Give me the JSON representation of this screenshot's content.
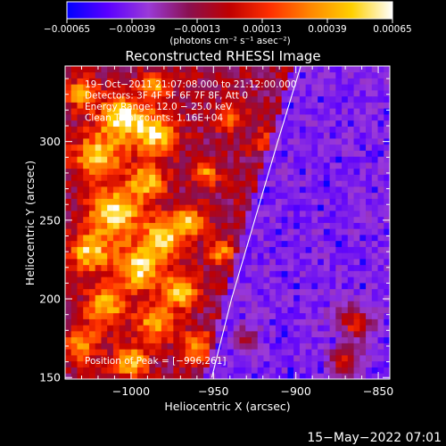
{
  "chart_data": {
    "type": "heatmap",
    "title": "Reconstructed RHESSI Image",
    "xlabel": "Heliocentric X (arcsec)",
    "ylabel": "Heliocentric Y (arcsec)",
    "xlim": [
      -1040,
      -843
    ],
    "ylim": [
      149,
      348
    ],
    "x_ticks": [
      -1000,
      -950,
      -900,
      -850
    ],
    "x_tick_labels": [
      "−1000",
      "−950",
      "−900",
      "−850"
    ],
    "y_ticks": [
      150,
      200,
      250,
      300
    ],
    "y_tick_labels": [
      "150",
      "200",
      "250",
      "300"
    ],
    "colorbar": {
      "min": -0.00065,
      "max": 0.00065,
      "ticks": [
        -0.00065,
        -0.00039,
        -0.00013,
        0.00013,
        0.00039,
        0.00065
      ],
      "tick_labels": [
        "−0.00065",
        "−0.00039",
        "−0.00013",
        "0.00013",
        "0.00039",
        "0.00065"
      ],
      "unit_label": "(photons cm⁻² s⁻¹ asec⁻²)",
      "colors": [
        "#0000ff",
        "#5a00ff",
        "#9a3ad8",
        "#8a1050",
        "#c00000",
        "#ff3000",
        "#ff8800",
        "#ffd000",
        "#ffffff"
      ]
    },
    "annotations": [
      "19−Oct−2011 21:07:08.000 to 21:12:00.000",
      "Detectors: 3F 4F 5F 6F 7F 8F, Att 0",
      "Energy Range: 12.0 − 25.0 keV",
      "Clean     Total counts: 1.16E+04"
    ],
    "peak_label": "Position of Peak = [−996,261]",
    "peak": [
      -996,
      261
    ],
    "limb": [
      [
        -951,
        150
      ],
      [
        -939,
        200
      ],
      [
        -925,
        250
      ],
      [
        -911,
        300
      ],
      [
        -897,
        348
      ]
    ],
    "bright_blobs": [
      [
        -1005,
        315,
        1.0,
        14
      ],
      [
        -985,
        305,
        0.9,
        12
      ],
      [
        -1020,
        290,
        0.85,
        14
      ],
      [
        -990,
        275,
        0.8,
        11
      ],
      [
        -1010,
        255,
        1.0,
        15
      ],
      [
        -980,
        240,
        0.9,
        12
      ],
      [
        -1025,
        230,
        0.85,
        12
      ],
      [
        -995,
        220,
        0.95,
        14
      ],
      [
        -970,
        205,
        0.9,
        10
      ],
      [
        -1015,
        195,
        0.8,
        12
      ],
      [
        -985,
        185,
        0.75,
        11
      ],
      [
        -960,
        170,
        0.75,
        9
      ],
      [
        -1030,
        170,
        0.7,
        10
      ],
      [
        -1000,
        160,
        0.8,
        10
      ],
      [
        -965,
        250,
        0.8,
        9
      ],
      [
        -955,
        280,
        0.6,
        8
      ],
      [
        -940,
        315,
        0.55,
        8
      ],
      [
        -1030,
        330,
        0.7,
        9
      ],
      [
        -985,
        335,
        0.65,
        9
      ],
      [
        -945,
        230,
        0.6,
        8
      ],
      [
        -930,
        175,
        0.45,
        7
      ],
      [
        -865,
        185,
        0.75,
        10
      ],
      [
        -870,
        160,
        0.6,
        9
      ],
      [
        -920,
        300,
        0.4,
        7
      ]
    ]
  },
  "footer_date": "15−May−2022 07:01"
}
